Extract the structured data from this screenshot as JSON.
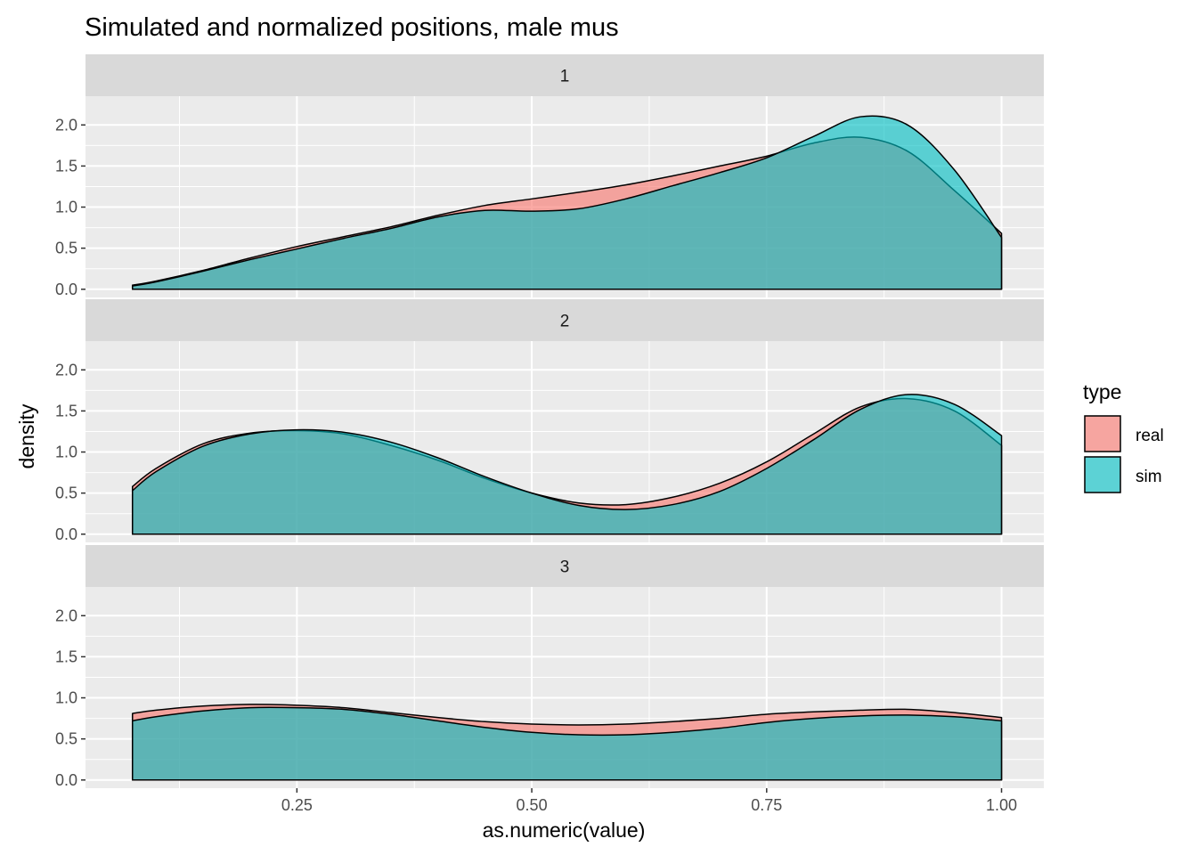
{
  "chart_data": {
    "type": "area",
    "title": "Simulated and normalized positions, male mus",
    "xlabel": "as.numeric(value)",
    "ylabel": "density",
    "xlim": [
      0.025,
      1.045
    ],
    "ylim": [
      -0.1,
      2.35
    ],
    "x_ticks": [
      0.25,
      0.5,
      0.75,
      1.0
    ],
    "x_tick_labels": [
      "0.25",
      "0.50",
      "0.75",
      "1.00"
    ],
    "y_ticks": [
      0,
      0.5,
      1.0,
      1.5,
      2.0
    ],
    "y_tick_labels": [
      "0.0",
      "0.5",
      "1.0",
      "1.5",
      "2.0"
    ],
    "grid": true,
    "legend": {
      "title": "type",
      "position": "right",
      "entries": [
        {
          "label": "real",
          "color": "#F8766D"
        },
        {
          "label": "sim",
          "color": "#00BFC4"
        }
      ]
    },
    "facets": [
      {
        "label": "1",
        "x": [
          0.075,
          0.1,
          0.15,
          0.2,
          0.25,
          0.3,
          0.35,
          0.4,
          0.45,
          0.5,
          0.55,
          0.6,
          0.65,
          0.7,
          0.75,
          0.8,
          0.85,
          0.9,
          0.95,
          1.0
        ],
        "series": [
          {
            "name": "real",
            "values": [
              0.05,
              0.1,
              0.23,
              0.38,
              0.52,
              0.64,
              0.76,
              0.9,
              1.02,
              1.1,
              1.18,
              1.27,
              1.38,
              1.5,
              1.62,
              1.78,
              1.85,
              1.68,
              1.2,
              0.68
            ]
          },
          {
            "name": "sim",
            "values": [
              0.04,
              0.09,
              0.22,
              0.36,
              0.49,
              0.62,
              0.74,
              0.88,
              0.96,
              0.95,
              0.98,
              1.1,
              1.26,
              1.42,
              1.6,
              1.86,
              2.1,
              2.0,
              1.45,
              0.63
            ]
          }
        ]
      },
      {
        "label": "2",
        "x": [
          0.075,
          0.1,
          0.15,
          0.2,
          0.25,
          0.3,
          0.35,
          0.4,
          0.45,
          0.5,
          0.55,
          0.6,
          0.65,
          0.7,
          0.75,
          0.8,
          0.85,
          0.9,
          0.95,
          1.0
        ],
        "series": [
          {
            "name": "real",
            "values": [
              0.58,
              0.8,
              1.1,
              1.23,
              1.26,
              1.22,
              1.08,
              0.9,
              0.68,
              0.5,
              0.38,
              0.36,
              0.45,
              0.62,
              0.88,
              1.22,
              1.55,
              1.65,
              1.5,
              1.08
            ]
          },
          {
            "name": "sim",
            "values": [
              0.53,
              0.76,
              1.07,
              1.22,
              1.27,
              1.24,
              1.12,
              0.93,
              0.7,
              0.5,
              0.35,
              0.3,
              0.36,
              0.52,
              0.8,
              1.15,
              1.52,
              1.7,
              1.58,
              1.2
            ]
          }
        ]
      },
      {
        "label": "3",
        "x": [
          0.075,
          0.1,
          0.15,
          0.2,
          0.25,
          0.3,
          0.35,
          0.4,
          0.45,
          0.5,
          0.55,
          0.6,
          0.65,
          0.7,
          0.75,
          0.8,
          0.85,
          0.9,
          0.95,
          1.0
        ],
        "series": [
          {
            "name": "real",
            "values": [
              0.81,
              0.85,
              0.9,
              0.92,
              0.91,
              0.88,
              0.82,
              0.76,
              0.71,
              0.68,
              0.67,
              0.68,
              0.71,
              0.75,
              0.8,
              0.83,
              0.85,
              0.86,
              0.82,
              0.76
            ]
          },
          {
            "name": "sim",
            "values": [
              0.72,
              0.77,
              0.84,
              0.88,
              0.88,
              0.86,
              0.8,
              0.72,
              0.64,
              0.58,
              0.55,
              0.55,
              0.58,
              0.63,
              0.7,
              0.75,
              0.78,
              0.79,
              0.77,
              0.72
            ]
          }
        ]
      }
    ]
  }
}
